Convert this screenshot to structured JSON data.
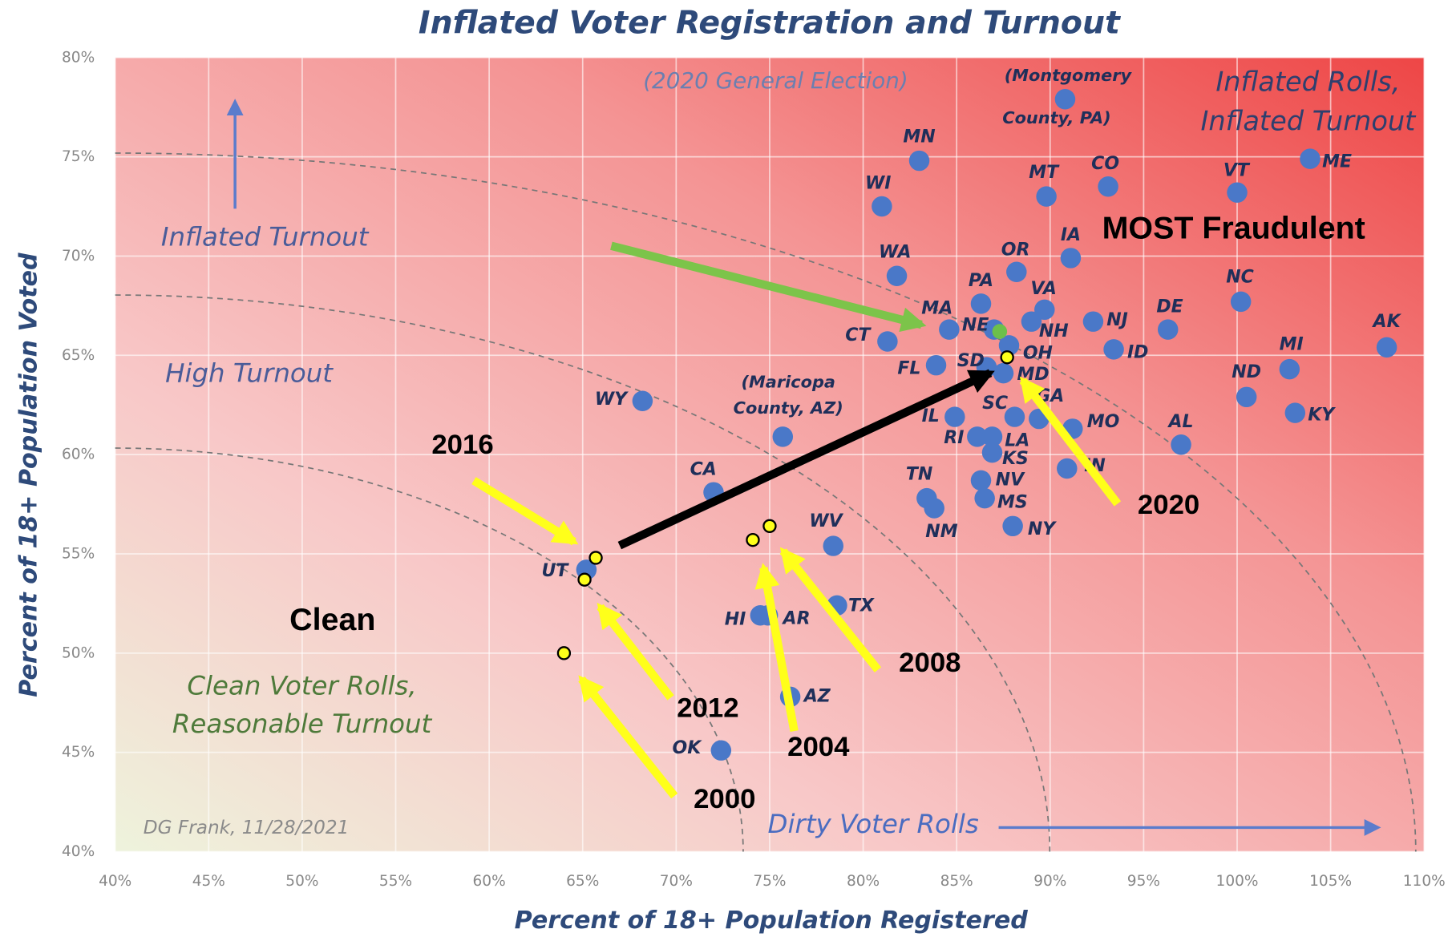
{
  "chart_data": {
    "type": "scatter",
    "title": "Inflated Voter Registration and Turnout",
    "x_label": "Percent of 18+ Population  Registered",
    "y_label": "Percent of 18+ Population  Voted",
    "xlim": [
      40,
      110
    ],
    "ylim": [
      40,
      80
    ],
    "xticks": [
      {
        "value": 40,
        "label": "40%"
      },
      {
        "value": 45,
        "label": "45%"
      },
      {
        "value": 50,
        "label": "50%"
      },
      {
        "value": 55,
        "label": "55%"
      },
      {
        "value": 60,
        "label": "60%"
      },
      {
        "value": 65,
        "label": "65%"
      },
      {
        "value": 70,
        "label": "70%"
      },
      {
        "value": 75,
        "label": "75%"
      },
      {
        "value": 80,
        "label": "80%"
      },
      {
        "value": 85,
        "label": "85%"
      },
      {
        "value": 90,
        "label": "90%"
      },
      {
        "value": 95,
        "label": "95%"
      },
      {
        "value": 100,
        "label": "100%"
      },
      {
        "value": 105,
        "label": "105%"
      },
      {
        "value": 110,
        "label": "110%"
      }
    ],
    "yticks": [
      {
        "value": 40,
        "label": "40%"
      },
      {
        "value": 45,
        "label": "45%"
      },
      {
        "value": 50,
        "label": "50%"
      },
      {
        "value": 55,
        "label": "55%"
      },
      {
        "value": 60,
        "label": "60%"
      },
      {
        "value": 65,
        "label": "65%"
      },
      {
        "value": 70,
        "label": "70%"
      },
      {
        "value": 75,
        "label": "75%"
      },
      {
        "value": 80,
        "label": "80%"
      }
    ],
    "grid": true,
    "point_color": "#4a78c8",
    "year_color": "#ffff1a",
    "highlight_color": "#6cc04a",
    "points": [
      {
        "label": [
          "(Montgomery",
          "County, PA)"
        ],
        "x": 90.8,
        "y": 77.9
      },
      {
        "label": [
          "MN"
        ],
        "x": 83.0,
        "y": 74.8
      },
      {
        "label": [
          "WI"
        ],
        "x": 81.0,
        "y": 72.5
      },
      {
        "label": [
          "MT"
        ],
        "x": 89.8,
        "y": 73.0
      },
      {
        "label": [
          "CO"
        ],
        "x": 93.1,
        "y": 73.5
      },
      {
        "label": [
          "VT"
        ],
        "x": 100.0,
        "y": 73.2
      },
      {
        "label": [
          "ME"
        ],
        "x": 103.9,
        "y": 74.9
      },
      {
        "label": [
          "IA"
        ],
        "x": 91.1,
        "y": 69.9
      },
      {
        "label": [
          "WA"
        ],
        "x": 81.8,
        "y": 69.0
      },
      {
        "label": [
          "OR"
        ],
        "x": 88.2,
        "y": 69.2
      },
      {
        "label": [
          "NC"
        ],
        "x": 100.2,
        "y": 67.7
      },
      {
        "label": [
          "PA"
        ],
        "x": 86.3,
        "y": 67.6
      },
      {
        "label": [
          "VA"
        ],
        "x": 89.7,
        "y": 67.3
      },
      {
        "label": [
          "MA"
        ],
        "x": 84.6,
        "y": 66.3
      },
      {
        "label": [
          "NE"
        ],
        "x": 87.0,
        "y": 66.3
      },
      {
        "label": [
          "NH"
        ],
        "x": 89.0,
        "y": 66.7
      },
      {
        "label": [
          "NJ"
        ],
        "x": 92.3,
        "y": 66.7
      },
      {
        "label": [
          "DE"
        ],
        "x": 96.3,
        "y": 66.3
      },
      {
        "label": [
          "ID"
        ],
        "x": 93.4,
        "y": 65.3
      },
      {
        "label": [
          "AK"
        ],
        "x": 108.0,
        "y": 65.4
      },
      {
        "label": [
          "CT"
        ],
        "x": 81.3,
        "y": 65.7
      },
      {
        "label": [
          "OH"
        ],
        "x": 87.8,
        "y": 65.5
      },
      {
        "label": [
          "FL"
        ],
        "x": 83.9,
        "y": 64.5
      },
      {
        "label": [
          "SD"
        ],
        "x": 86.6,
        "y": 64.4
      },
      {
        "label": [
          "MD"
        ],
        "x": 87.5,
        "y": 64.1
      },
      {
        "label": [
          "MI"
        ],
        "x": 102.8,
        "y": 64.3
      },
      {
        "label": [
          "ND"
        ],
        "x": 100.5,
        "y": 62.9
      },
      {
        "label": [
          "WY"
        ],
        "x": 68.2,
        "y": 62.7
      },
      {
        "label": [
          "KY"
        ],
        "x": 103.1,
        "y": 62.1
      },
      {
        "label": [
          "GA"
        ],
        "x": 89.4,
        "y": 61.8
      },
      {
        "label": [
          "SC"
        ],
        "x": 88.1,
        "y": 61.9
      },
      {
        "label": [
          "IL"
        ],
        "x": 84.9,
        "y": 61.9
      },
      {
        "label": [
          "MO"
        ],
        "x": 91.2,
        "y": 61.3
      },
      {
        "label": [
          "RI"
        ],
        "x": 86.1,
        "y": 60.9
      },
      {
        "label": [
          "LA"
        ],
        "x": 86.9,
        "y": 60.9
      },
      {
        "label": [
          "KS"
        ],
        "x": 86.9,
        "y": 60.1
      },
      {
        "label": [
          "AL"
        ],
        "x": 97.0,
        "y": 60.5
      },
      {
        "label": [
          "(Maricopa",
          "County, AZ)"
        ],
        "x": 75.7,
        "y": 60.9
      },
      {
        "label": [
          "IN"
        ],
        "x": 90.9,
        "y": 59.3
      },
      {
        "label": [
          "CA"
        ],
        "x": 72.0,
        "y": 58.1
      },
      {
        "label": [
          "NV"
        ],
        "x": 86.3,
        "y": 58.7
      },
      {
        "label": [
          "TN"
        ],
        "x": 83.4,
        "y": 57.8
      },
      {
        "label": [
          "NM"
        ],
        "x": 83.8,
        "y": 57.3
      },
      {
        "label": [
          "MS"
        ],
        "x": 86.5,
        "y": 57.8
      },
      {
        "label": [
          "NY"
        ],
        "x": 88.0,
        "y": 56.4
      },
      {
        "label": [
          "WV"
        ],
        "x": 78.4,
        "y": 55.4
      },
      {
        "label": [
          "UT"
        ],
        "x": 65.2,
        "y": 54.2
      },
      {
        "label": [
          "TX"
        ],
        "x": 78.6,
        "y": 52.4
      },
      {
        "label": [
          "HI"
        ],
        "x": 74.5,
        "y": 51.9
      },
      {
        "label": [
          "AR"
        ],
        "x": 74.9,
        "y": 51.9
      },
      {
        "label": [
          "AZ"
        ],
        "x": 76.1,
        "y": 47.8
      },
      {
        "label": [
          "OK"
        ],
        "x": 72.4,
        "y": 45.1
      }
    ],
    "years": [
      {
        "label": "2016",
        "x": 65.7,
        "y": 54.8
      },
      {
        "label": "2012",
        "x": 65.1,
        "y": 53.7
      },
      {
        "label": "2000",
        "x": 64.0,
        "y": 50.0
      },
      {
        "label": "2004",
        "x": 74.1,
        "y": 55.7
      },
      {
        "label": "2008",
        "x": 75.0,
        "y": 56.4
      },
      {
        "label": "2020",
        "x": 87.7,
        "y": 64.9
      }
    ],
    "highlight": {
      "x": 87.3,
      "y": 66.2
    },
    "annotations": [
      "(2020 General Election)",
      "Inflated Rolls,",
      "Inflated Turnout",
      "Inflated Turnout",
      "High Turnout",
      "Clean Voter Rolls,",
      "Reasonable Turnout",
      "DG Frank, 11/28/2021",
      "Dirty Voter Rolls",
      "MOST Fraudulent",
      "Clean"
    ]
  }
}
